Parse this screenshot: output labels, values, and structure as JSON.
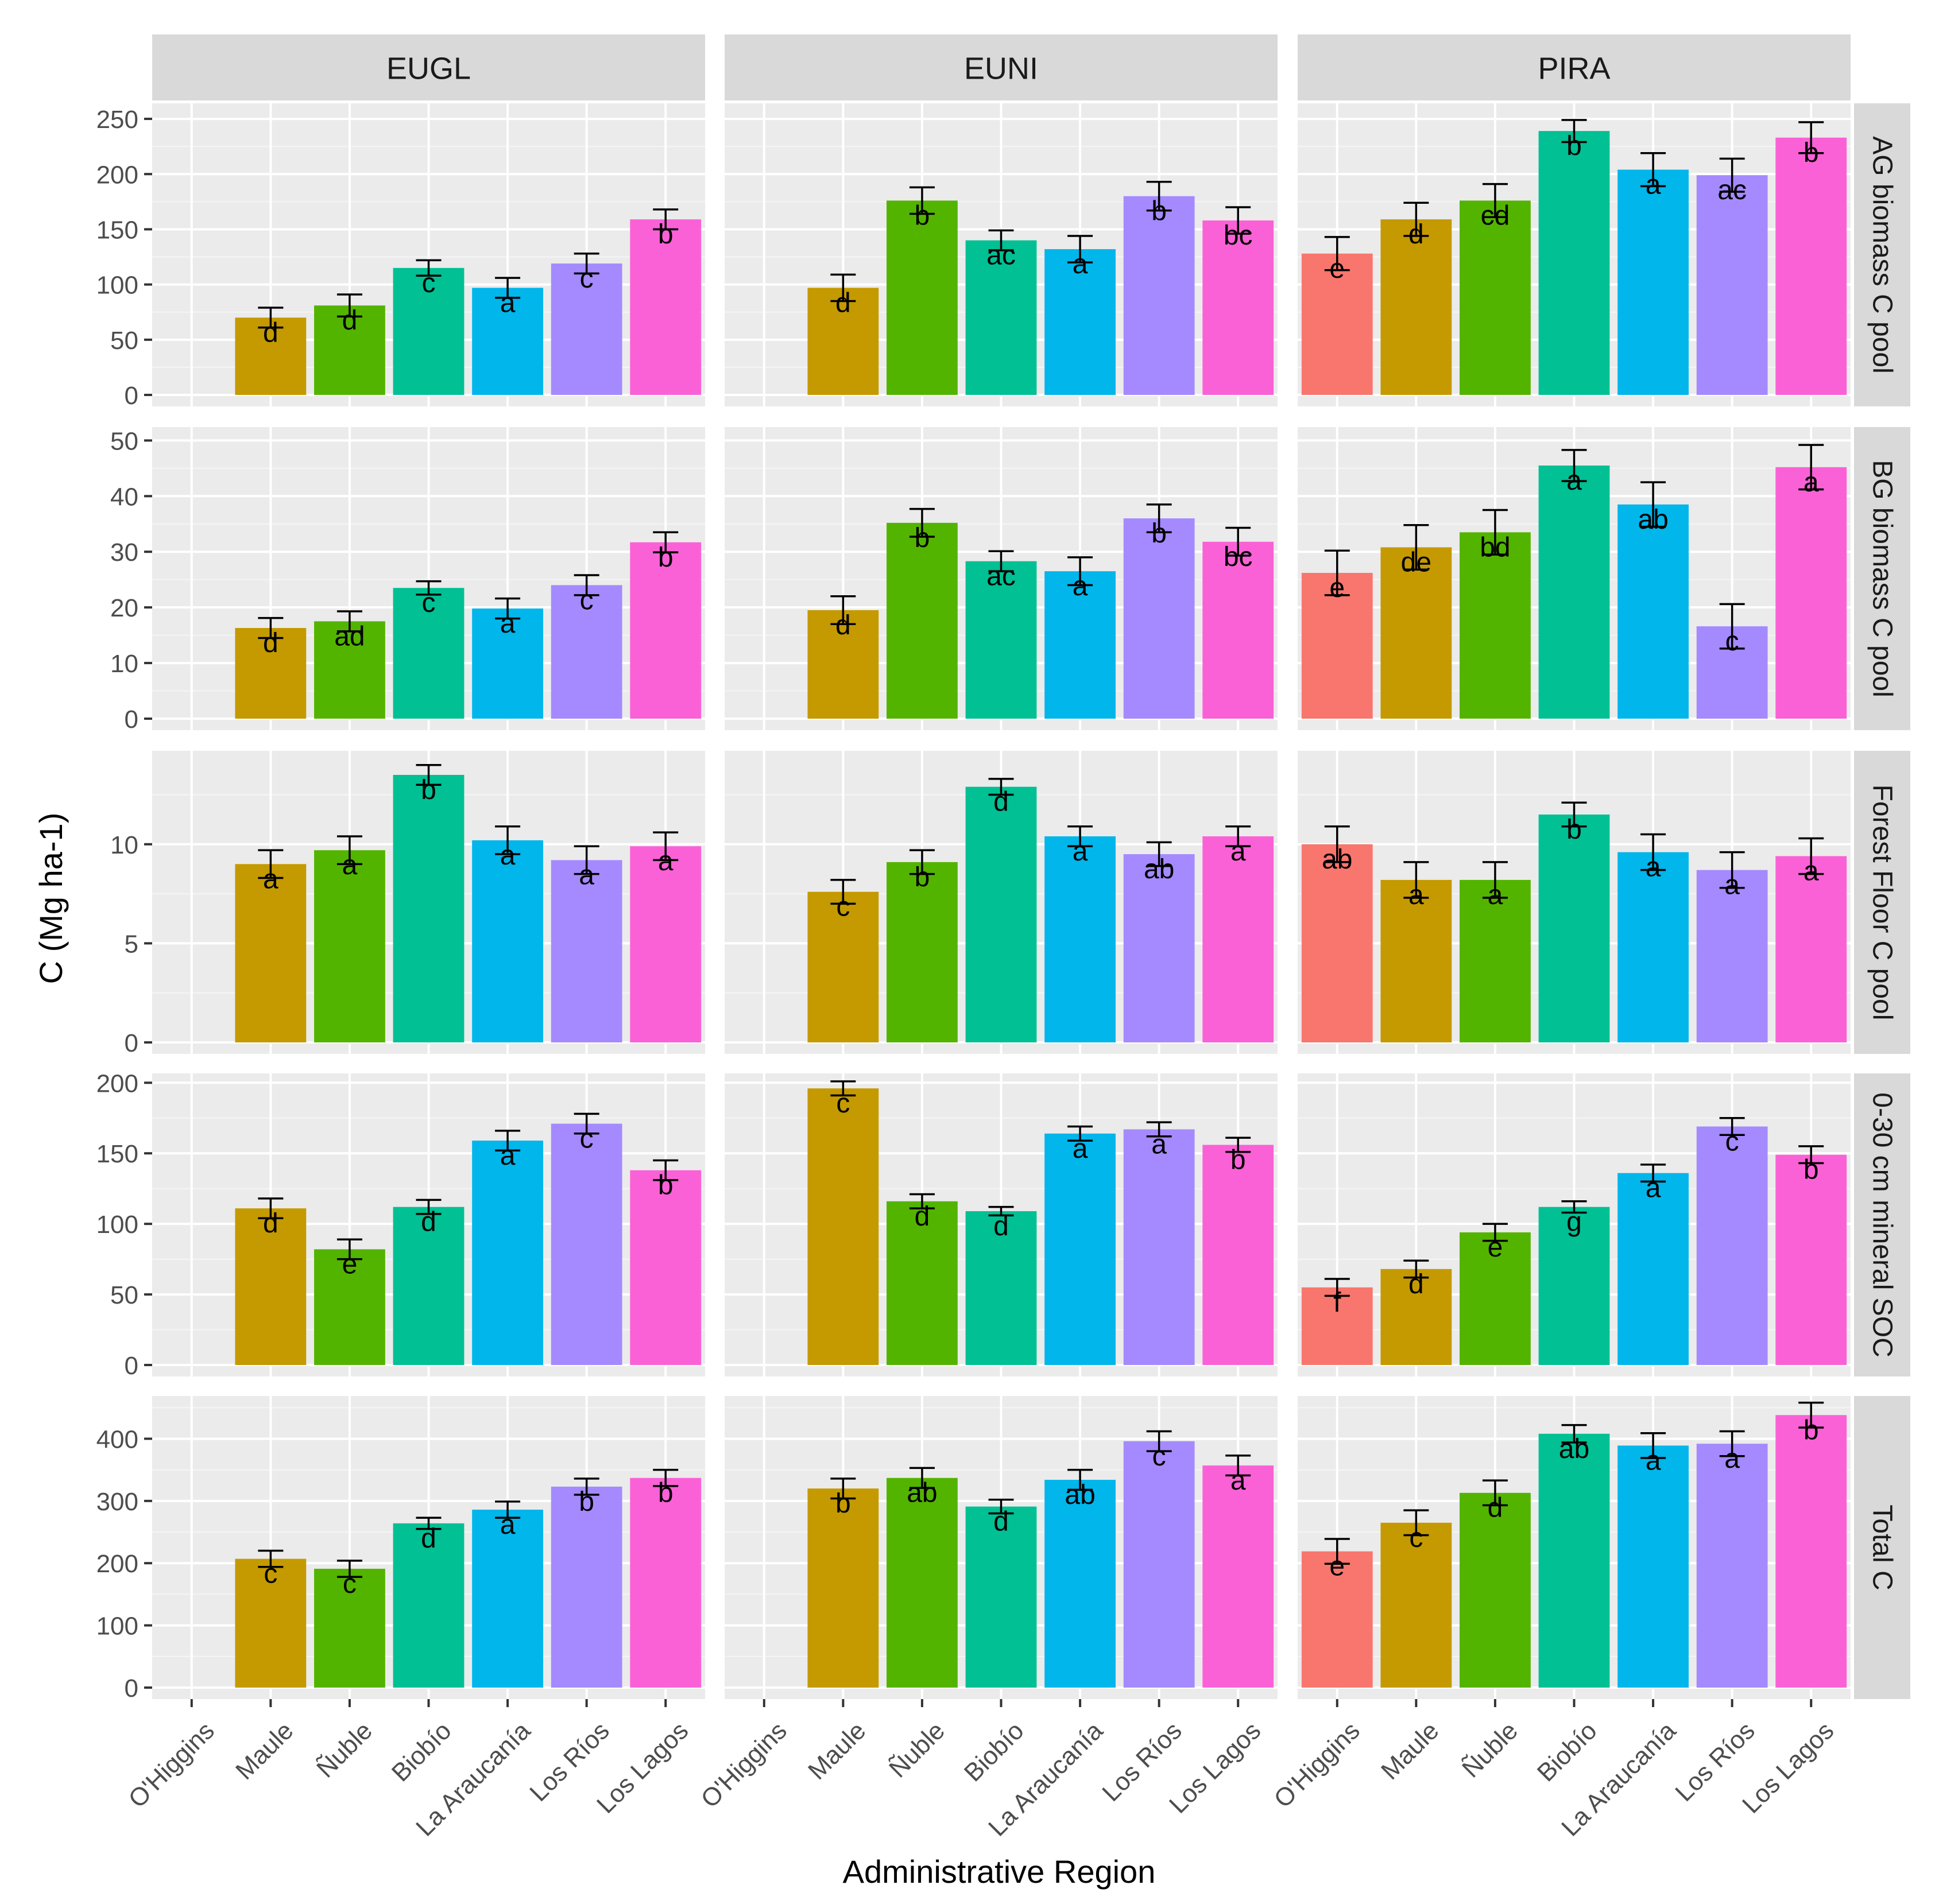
{
  "chart_data": {
    "type": "bar",
    "xlabel": "Administrative Region",
    "ylabel": "C (Mg ha-1)",
    "categories": [
      "O'Higgins",
      "Maule",
      "Ñuble",
      "Biobío",
      "La Araucanía",
      "Los Ríos",
      "Los Lagos"
    ],
    "category_colors": [
      "#F8766D",
      "#C49A00",
      "#53B400",
      "#00C094",
      "#00B6EB",
      "#A58AFF",
      "#FB61D7"
    ],
    "species": [
      "EUGL",
      "EUNI",
      "PIRA"
    ],
    "rows": [
      {
        "label": "AG biomass C pool",
        "ylim": [
          0,
          262
        ],
        "ticks": [
          0,
          50,
          100,
          150,
          200,
          250
        ],
        "panels": [
          {
            "values": [
              null,
              70,
              81,
              115,
              97,
              119,
              159
            ],
            "errors": [
              null,
              9,
              10,
              7,
              9,
              9,
              9
            ],
            "letters": [
              "",
              "d",
              "d",
              "c",
              "a",
              "c",
              "b"
            ]
          },
          {
            "values": [
              null,
              97,
              176,
              140,
              132,
              180,
              158
            ],
            "errors": [
              null,
              12,
              12,
              9,
              12,
              13,
              12
            ],
            "letters": [
              "",
              "d",
              "b",
              "ac",
              "a",
              "b",
              "bc"
            ]
          },
          {
            "values": [
              128,
              159,
              176,
              239,
              204,
              199,
              233
            ],
            "errors": [
              15,
              15,
              15,
              10,
              15,
              15,
              14
            ],
            "letters": [
              "e",
              "d",
              "cd",
              "b",
              "a",
              "ac",
              "b"
            ]
          }
        ]
      },
      {
        "label": "BG biomass C pool",
        "ylim": [
          0,
          52
        ],
        "ticks": [
          0,
          10,
          20,
          30,
          40,
          50
        ],
        "panels": [
          {
            "values": [
              null,
              16.3,
              17.5,
              23.5,
              19.8,
              24,
              31.7
            ],
            "errors": [
              null,
              1.8,
              1.8,
              1.2,
              1.8,
              1.8,
              1.8
            ],
            "letters": [
              "",
              "d",
              "ad",
              "c",
              "a",
              "c",
              "b"
            ]
          },
          {
            "values": [
              null,
              19.5,
              35.2,
              28.3,
              26.5,
              36,
              31.8
            ],
            "errors": [
              null,
              2.5,
              2.5,
              1.8,
              2.5,
              2.5,
              2.5
            ],
            "letters": [
              "",
              "d",
              "b",
              "ac",
              "a",
              "b",
              "bc"
            ]
          },
          {
            "values": [
              26.2,
              30.8,
              33.5,
              45.5,
              38.5,
              16.6,
              45.2
            ],
            "errors": [
              4,
              4,
              4,
              2.8,
              4,
              4,
              4
            ],
            "letters": [
              "e",
              "de",
              "bd",
              "a",
              "ab",
              "c",
              "a"
            ]
          }
        ]
      },
      {
        "label": "Forest Floor C pool",
        "ylim": [
          0,
          14.6
        ],
        "ticks": [
          0,
          5,
          10
        ],
        "panels": [
          {
            "values": [
              null,
              9,
              9.7,
              13.5,
              10.2,
              9.2,
              9.9
            ],
            "errors": [
              null,
              0.7,
              0.7,
              0.5,
              0.7,
              0.7,
              0.7
            ],
            "letters": [
              "",
              "a",
              "a",
              "b",
              "a",
              "a",
              "a"
            ]
          },
          {
            "values": [
              null,
              7.6,
              9.1,
              12.9,
              10.4,
              9.5,
              10.4
            ],
            "errors": [
              null,
              0.6,
              0.6,
              0.4,
              0.5,
              0.6,
              0.5
            ],
            "letters": [
              "",
              "c",
              "b",
              "d",
              "a",
              "ab",
              "a"
            ]
          },
          {
            "values": [
              10,
              8.2,
              8.2,
              11.5,
              9.6,
              8.7,
              9.4
            ],
            "errors": [
              0.9,
              0.9,
              0.9,
              0.6,
              0.9,
              0.9,
              0.9
            ],
            "letters": [
              "ab",
              "a",
              "a",
              "b",
              "a",
              "a",
              "a"
            ]
          }
        ]
      },
      {
        "label": "0-30 cm mineral SOC",
        "ylim": [
          0,
          205
        ],
        "ticks": [
          0,
          50,
          100,
          150,
          200
        ],
        "panels": [
          {
            "values": [
              null,
              111,
              82,
              112,
              159,
              171,
              138
            ],
            "errors": [
              null,
              7,
              7,
              5,
              7,
              7,
              7
            ],
            "letters": [
              "",
              "d",
              "e",
              "d",
              "a",
              "c",
              "b"
            ]
          },
          {
            "values": [
              null,
              196,
              116,
              109,
              164,
              167,
              156
            ],
            "errors": [
              null,
              5,
              5,
              3,
              5,
              5,
              5
            ],
            "letters": [
              "",
              "c",
              "d",
              "d",
              "a",
              "a",
              "b"
            ]
          },
          {
            "values": [
              55,
              68,
              94,
              112,
              136,
              169,
              149
            ],
            "errors": [
              6,
              6,
              6,
              4,
              6,
              6,
              6
            ],
            "letters": [
              "f",
              "d",
              "e",
              "g",
              "a",
              "c",
              "b"
            ]
          }
        ]
      },
      {
        "label": "Total C",
        "ylim": [
          0,
          465
        ],
        "ticks": [
          0,
          100,
          200,
          300,
          400
        ],
        "panels": [
          {
            "values": [
              null,
              207,
              191,
              264,
              286,
              323,
              337
            ],
            "errors": [
              null,
              13,
              13,
              9,
              13,
              13,
              13
            ],
            "letters": [
              "",
              "c",
              "c",
              "d",
              "a",
              "b",
              "b"
            ]
          },
          {
            "values": [
              null,
              320,
              337,
              291,
              334,
              396,
              357
            ],
            "errors": [
              null,
              16,
              16,
              11,
              16,
              16,
              16
            ],
            "letters": [
              "",
              "b",
              "ab",
              "d",
              "ab",
              "c",
              "a"
            ]
          },
          {
            "values": [
              219,
              265,
              313,
              408,
              389,
              392,
              438
            ],
            "errors": [
              20,
              20,
              20,
              14,
              20,
              20,
              20
            ],
            "letters": [
              "e",
              "c",
              "d",
              "ab",
              "a",
              "a",
              "b"
            ]
          }
        ]
      }
    ]
  }
}
